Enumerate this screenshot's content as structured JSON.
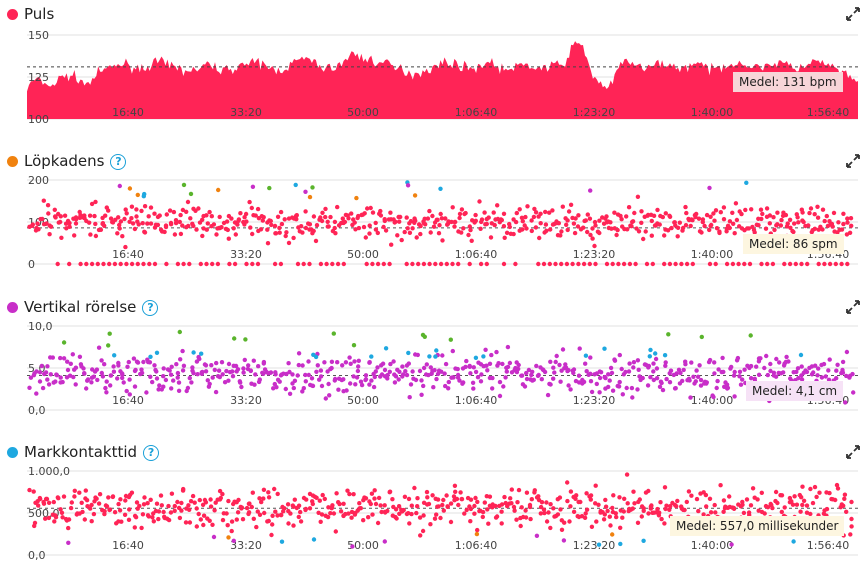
{
  "x_ticks": [
    "16:40",
    "33:20",
    "50:00",
    "1:06:40",
    "1:23:20",
    "1:40:00",
    "1:56:40"
  ],
  "colors": {
    "pink": "#ff2456",
    "orange": "#f0820f",
    "purple": "#c82ec8",
    "blue": "#1ea8e0",
    "green": "#5ab42c"
  },
  "panels": {
    "puls": {
      "title": "Puls",
      "dot_color": "#ff2456",
      "y_ticks": [
        "150",
        "125",
        "100"
      ],
      "average_label": "Medel: 131 bpm",
      "icons": [
        "expand-icon"
      ]
    },
    "cadence": {
      "title": "Löpkadens",
      "dot_color": "#f0820f",
      "y_ticks": [
        "200",
        "100",
        "0"
      ],
      "average_label": "Medel: 86 spm",
      "icons": [
        "help-icon",
        "expand-icon"
      ]
    },
    "vertical": {
      "title": "Vertikal rörelse",
      "dot_color": "#c82ec8",
      "y_ticks": [
        "10,0",
        "5,0",
        "0,0"
      ],
      "average_label": "Medel: 4,1 cm",
      "icons": [
        "help-icon",
        "expand-icon"
      ]
    },
    "contact": {
      "title": "Markkontakttid",
      "dot_color": "#1ea8e0",
      "y_ticks": [
        "1.000,0",
        "500,0",
        "0,0"
      ],
      "average_label": "Medel: 557,0 millisekunder",
      "icons": [
        "help-icon",
        "expand-icon"
      ]
    }
  },
  "chart_data": [
    {
      "type": "area",
      "title": "Puls",
      "ylim": [
        100,
        150
      ],
      "average": 131,
      "x_tick_labels": [
        "16:40",
        "33:20",
        "50:00",
        "1:06:40",
        "1:23:20",
        "1:40:00",
        "1:56:40"
      ],
      "series": [
        {
          "name": "Puls",
          "profile": [
            118,
            124,
            121,
            120,
            125,
            126,
            124,
            120,
            126,
            129,
            131,
            133,
            132,
            130,
            131,
            134,
            133,
            131,
            130,
            128,
            130,
            132,
            131,
            129,
            130,
            133,
            132,
            134,
            131,
            129,
            130,
            133,
            136,
            135,
            132,
            130,
            131,
            134,
            139,
            137,
            135,
            134,
            133,
            130,
            129,
            127,
            128,
            130,
            132,
            134,
            133,
            131,
            130,
            132,
            134,
            131,
            129,
            130,
            133,
            131,
            130,
            131,
            132,
            135,
            146,
            142,
            126,
            121,
            118,
            130,
            135,
            133,
            129,
            131,
            134,
            132,
            130,
            131,
            134,
            131,
            129,
            131,
            133,
            134,
            132,
            130,
            132,
            133,
            134,
            131,
            130,
            132,
            134,
            133,
            131,
            128,
            124,
            121
          ]
        }
      ]
    },
    {
      "type": "scatter",
      "title": "Löpkadens",
      "ylim": [
        0,
        200
      ],
      "average": 86,
      "x_tick_labels": [
        "16:40",
        "33:20",
        "50:00",
        "1:06:40",
        "1:23:20",
        "1:40:00",
        "1:56:40"
      ],
      "series": [
        {
          "name": "Löpkadens",
          "center": 100,
          "spread": 28,
          "outliers": [
            185,
            172,
            162
          ],
          "baseline": 0
        }
      ]
    },
    {
      "type": "scatter",
      "title": "Vertikal rörelse",
      "ylim": [
        0,
        10
      ],
      "average": 4.1,
      "x_tick_labels": [
        "16:40",
        "33:20",
        "50:00",
        "1:06:40",
        "1:23:20",
        "1:40:00",
        "1:56:40"
      ],
      "series": [
        {
          "name": "Vertikal rörelse",
          "center": 4.2,
          "spread": 1.6,
          "outliers": [
            9.2,
            8.0,
            6.8
          ]
        }
      ]
    },
    {
      "type": "scatter",
      "title": "Markkontakttid",
      "ylim": [
        0,
        1000
      ],
      "average": 557,
      "x_tick_labels": [
        "16:40",
        "33:20",
        "50:00",
        "1:06:40",
        "1:23:20",
        "1:40:00",
        "1:56:40"
      ],
      "series": [
        {
          "name": "Markkontakttid",
          "center": 560,
          "spread": 170,
          "outliers": [
            180,
            120,
            900
          ]
        }
      ]
    }
  ]
}
